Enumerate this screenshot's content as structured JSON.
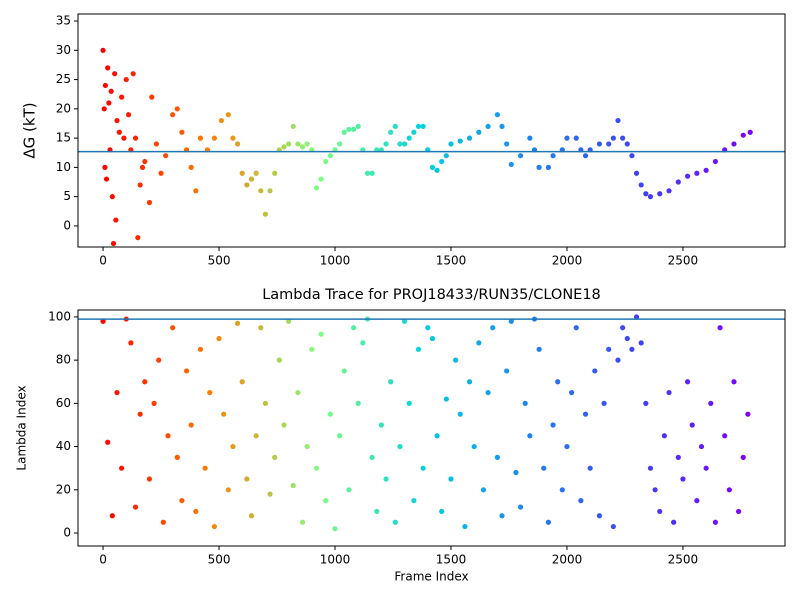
{
  "chart_data": [
    {
      "type": "scatter",
      "y_label": "ΔG (kT)",
      "x": [
        0,
        5,
        8,
        10,
        15,
        20,
        25,
        30,
        35,
        40,
        45,
        50,
        55,
        60,
        70,
        80,
        90,
        100,
        110,
        120,
        130,
        140,
        150,
        160,
        170,
        180,
        200,
        210,
        230,
        250,
        270,
        300,
        320,
        340,
        360,
        380,
        400,
        420,
        450,
        480,
        510,
        540,
        560,
        580,
        600,
        620,
        640,
        660,
        680,
        700,
        720,
        740,
        760,
        780,
        800,
        820,
        840,
        860,
        880,
        900,
        920,
        940,
        960,
        980,
        1000,
        1020,
        1040,
        1060,
        1080,
        1100,
        1120,
        1140,
        1160,
        1180,
        1200,
        1220,
        1240,
        1260,
        1280,
        1300,
        1320,
        1340,
        1360,
        1380,
        1400,
        1420,
        1440,
        1460,
        1480,
        1500,
        1540,
        1580,
        1620,
        1660,
        1700,
        1720,
        1740,
        1760,
        1800,
        1840,
        1860,
        1880,
        1920,
        1940,
        1980,
        2000,
        2040,
        2060,
        2080,
        2100,
        2140,
        2180,
        2200,
        2220,
        2240,
        2260,
        2280,
        2300,
        2320,
        2340,
        2360,
        2400,
        2440,
        2480,
        2520,
        2560,
        2600,
        2640,
        2680,
        2720,
        2760,
        2790
      ],
      "values": [
        30,
        20,
        10,
        24,
        8,
        27,
        21,
        13,
        23,
        5,
        -3,
        26,
        1,
        18,
        16,
        22,
        15,
        25,
        19,
        13,
        26,
        15,
        -2,
        7,
        10,
        11,
        4,
        22,
        14,
        9,
        12,
        19,
        20,
        16,
        13,
        10,
        6,
        15,
        13,
        15,
        18,
        19,
        15,
        14,
        9,
        7,
        8,
        9,
        6,
        2,
        6,
        9,
        13,
        13.5,
        14,
        17,
        14,
        13.5,
        14,
        13,
        6.5,
        8,
        11,
        12,
        13,
        14,
        16,
        16.5,
        16.5,
        17,
        13,
        9,
        9,
        13,
        13,
        14,
        16,
        17,
        14,
        14,
        15,
        16,
        17,
        17,
        13,
        10,
        9.5,
        11,
        12,
        14,
        14.5,
        15,
        16,
        17,
        19,
        17,
        14,
        10.5,
        12,
        15,
        13,
        10,
        10,
        12,
        13,
        15,
        15,
        13,
        12,
        13,
        14,
        14,
        15,
        18,
        15,
        14,
        12,
        9,
        7,
        5.5,
        5,
        5.5,
        6,
        7.5,
        8.5,
        9,
        9.5,
        11,
        13,
        14,
        15.5,
        16
      ],
      "colormap": [
        "#ff0000",
        "#ff8000",
        "#80ff80",
        "#00d0e0",
        "#2080f0",
        "#4040f8",
        "#8000ff"
      ],
      "hline": 12.7,
      "hline_color": "#1f77b4",
      "xlim": [
        -108,
        2940
      ],
      "ylim": [
        -3.6,
        36.2
      ],
      "xticks": [
        0,
        500,
        1000,
        1500,
        2000,
        2500
      ],
      "yticks": [
        0,
        5,
        10,
        15,
        20,
        25,
        30,
        35
      ]
    },
    {
      "type": "scatter",
      "title": "Lambda Trace for PROJ18433/RUN35/CLONE18",
      "x_label": "Frame Index",
      "y_label": "Lambda Index",
      "x": [
        0,
        20,
        40,
        60,
        80,
        100,
        120,
        140,
        160,
        180,
        200,
        220,
        240,
        260,
        280,
        300,
        320,
        340,
        360,
        380,
        400,
        420,
        440,
        460,
        480,
        500,
        520,
        540,
        560,
        580,
        600,
        620,
        640,
        660,
        680,
        700,
        720,
        740,
        760,
        780,
        800,
        820,
        840,
        860,
        880,
        900,
        920,
        940,
        960,
        980,
        1000,
        1020,
        1040,
        1060,
        1080,
        1100,
        1120,
        1140,
        1160,
        1180,
        1200,
        1220,
        1240,
        1260,
        1280,
        1300,
        1320,
        1340,
        1360,
        1380,
        1400,
        1420,
        1440,
        1460,
        1480,
        1500,
        1520,
        1540,
        1560,
        1580,
        1600,
        1620,
        1640,
        1660,
        1680,
        1700,
        1720,
        1740,
        1760,
        1780,
        1800,
        1820,
        1840,
        1860,
        1880,
        1900,
        1920,
        1940,
        1960,
        1980,
        2000,
        2020,
        2040,
        2060,
        2080,
        2100,
        2120,
        2140,
        2160,
        2180,
        2200,
        2220,
        2240,
        2260,
        2280,
        2300,
        2320,
        2340,
        2360,
        2380,
        2400,
        2420,
        2440,
        2460,
        2480,
        2500,
        2520,
        2540,
        2560,
        2580,
        2600,
        2620,
        2640,
        2660,
        2680,
        2700,
        2720,
        2740,
        2760,
        2780
      ],
      "values": [
        98,
        42,
        8,
        65,
        30,
        99,
        88,
        12,
        55,
        70,
        25,
        60,
        80,
        5,
        45,
        95,
        35,
        15,
        75,
        50,
        10,
        85,
        30,
        65,
        3,
        90,
        55,
        20,
        40,
        97,
        70,
        25,
        8,
        45,
        95,
        60,
        18,
        35,
        80,
        50,
        98,
        22,
        65,
        5,
        40,
        85,
        30,
        92,
        15,
        55,
        2,
        45,
        75,
        20,
        95,
        60,
        88,
        99,
        35,
        10,
        50,
        25,
        70,
        5,
        40,
        98,
        60,
        15,
        85,
        30,
        95,
        90,
        45,
        10,
        62,
        25,
        80,
        55,
        3,
        70,
        40,
        88,
        20,
        65,
        95,
        35,
        8,
        75,
        98,
        28,
        12,
        60,
        45,
        99,
        85,
        30,
        5,
        50,
        70,
        20,
        40,
        65,
        95,
        15,
        55,
        30,
        75,
        8,
        60,
        85,
        3,
        80,
        95,
        90,
        85,
        100,
        88,
        60,
        30,
        20,
        10,
        45,
        65,
        5,
        35,
        25,
        70,
        50,
        15,
        40,
        30,
        60,
        5,
        95,
        45,
        20,
        70,
        10,
        35,
        55
      ],
      "colormap": [
        "#ff0000",
        "#ff8000",
        "#80ff80",
        "#00d0e0",
        "#2080f0",
        "#4040f8",
        "#8000ff"
      ],
      "hline": 99,
      "hline_color": "#1f77b4",
      "xlim": [
        -108,
        2940
      ],
      "ylim": [
        -6,
        103.2
      ],
      "xticks": [
        0,
        500,
        1000,
        1500,
        2000,
        2500
      ],
      "yticks": [
        0,
        20,
        40,
        60,
        80,
        100
      ]
    }
  ]
}
